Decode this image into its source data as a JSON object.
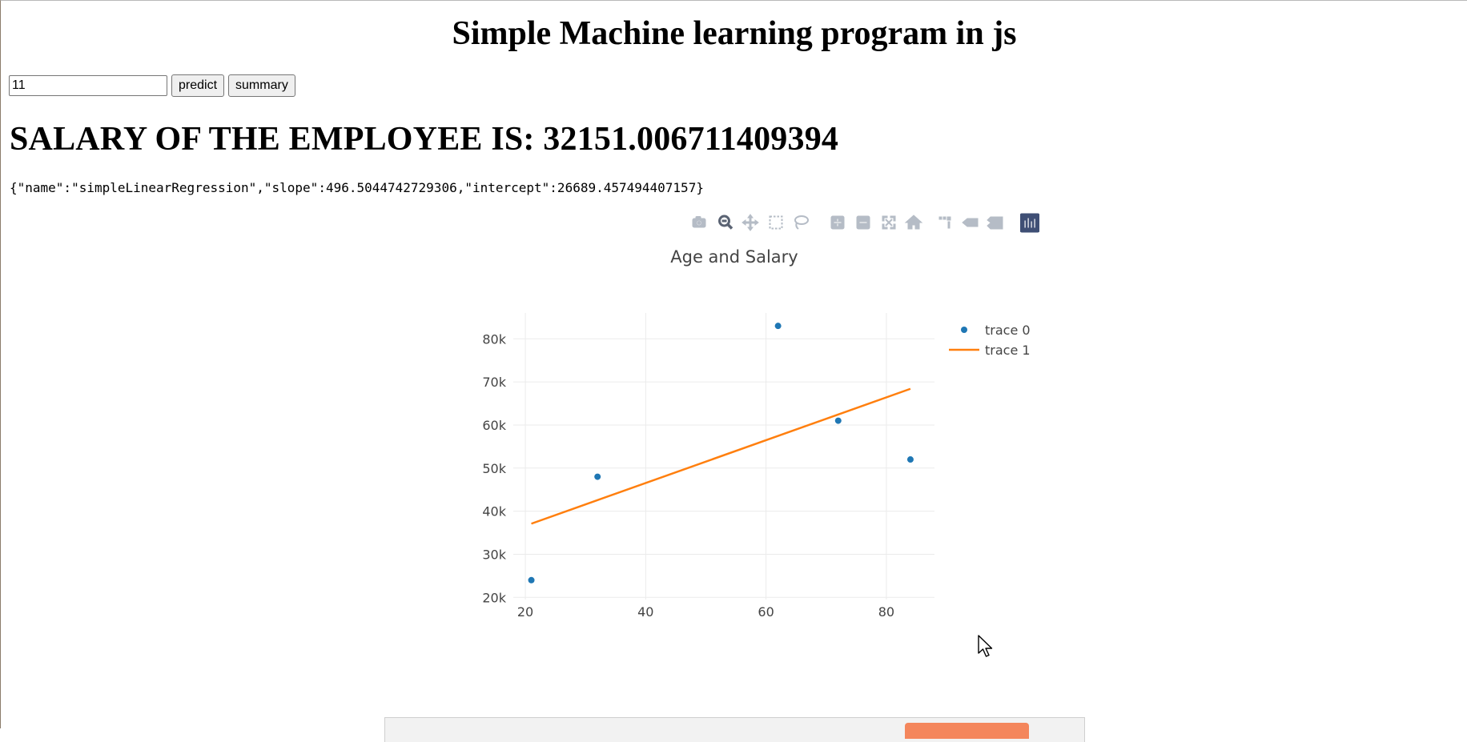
{
  "page": {
    "title": "Simple Machine learning program in js",
    "age_input_value": "11",
    "predict_label": "predict",
    "summary_label": "summary",
    "result_text": "SALARY OF THE EMPLOYEE IS: 32151.006711409394",
    "model_json": "{\"name\":\"simpleLinearRegression\",\"slope\":496.5044742729306,\"intercept\":26689.457494407157}"
  },
  "modebar": {
    "buttons": [
      {
        "name": "download-plot-icon",
        "title": "Download plot as a png",
        "active": false
      },
      {
        "name": "zoom-icon",
        "title": "Zoom",
        "active": true
      },
      {
        "name": "pan-icon",
        "title": "Pan",
        "active": false
      },
      {
        "name": "box-select-icon",
        "title": "Box Select",
        "active": false
      },
      {
        "name": "lasso-select-icon",
        "title": "Lasso Select",
        "active": false
      },
      {
        "name": "zoom-in-icon",
        "title": "Zoom in",
        "active": false
      },
      {
        "name": "zoom-out-icon",
        "title": "Zoom out",
        "active": false
      },
      {
        "name": "autoscale-icon",
        "title": "Autoscale",
        "active": false
      },
      {
        "name": "reset-axes-icon",
        "title": "Reset axes",
        "active": false
      },
      {
        "name": "spike-lines-icon",
        "title": "Toggle Spike Lines",
        "active": false
      },
      {
        "name": "hover-closest-icon",
        "title": "Show closest data on hover",
        "active": false
      },
      {
        "name": "hover-compare-icon",
        "title": "Compare data on hover",
        "active": false
      },
      {
        "name": "plotly-logo-icon",
        "title": "Produced with Plotly",
        "active": false
      }
    ],
    "colors": {
      "inactive": "#b5bcc6",
      "active": "#5a6373",
      "logo": "#3f4f75"
    }
  },
  "chart_data": {
    "type": "scatter",
    "title": "Age and Salary",
    "xlabel": "",
    "ylabel": "",
    "xlim": [
      18,
      88
    ],
    "ylim": [
      19500,
      86000
    ],
    "x_ticks": [
      20,
      40,
      60,
      80
    ],
    "y_ticks": [
      20000,
      30000,
      40000,
      50000,
      60000,
      70000,
      80000
    ],
    "y_tick_labels": [
      "20k",
      "30k",
      "40k",
      "50k",
      "60k",
      "70k",
      "80k"
    ],
    "grid": true,
    "legend_position": "top-right",
    "series": [
      {
        "name": "trace 0",
        "mode": "markers",
        "color": "#1f77b4",
        "x": [
          21,
          32,
          62,
          72,
          84
        ],
        "y": [
          24000,
          48000,
          83000,
          61000,
          52000
        ]
      },
      {
        "name": "trace 1",
        "mode": "lines",
        "color": "#ff7f0e",
        "x": [
          21,
          84
        ],
        "y": [
          37100,
          68400
        ]
      }
    ]
  }
}
